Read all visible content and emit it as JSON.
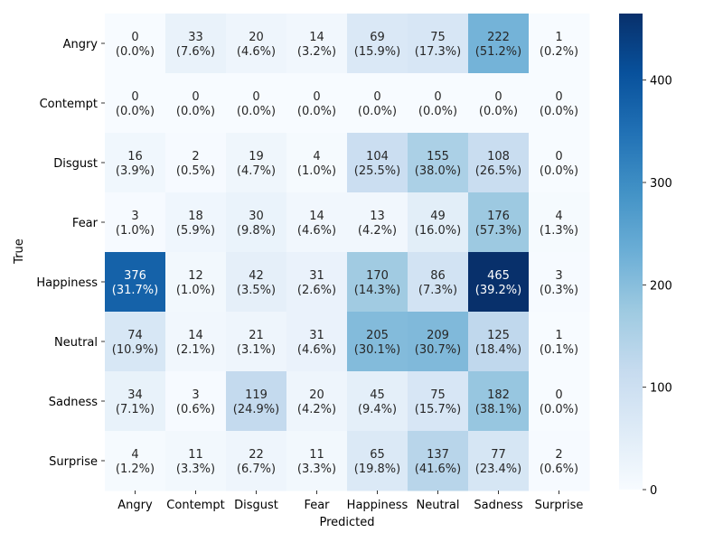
{
  "chart_data": {
    "type": "heatmap",
    "title": "",
    "xlabel": "Predicted",
    "ylabel": "True",
    "x_categories": [
      "Angry",
      "Contempt",
      "Disgust",
      "Fear",
      "Happiness",
      "Neutral",
      "Sadness",
      "Surprise"
    ],
    "y_categories": [
      "Angry",
      "Contempt",
      "Disgust",
      "Fear",
      "Happiness",
      "Neutral",
      "Sadness",
      "Surprise"
    ],
    "values": [
      [
        0,
        33,
        20,
        14,
        69,
        75,
        222,
        1
      ],
      [
        0,
        0,
        0,
        0,
        0,
        0,
        0,
        0
      ],
      [
        16,
        2,
        19,
        4,
        104,
        155,
        108,
        0
      ],
      [
        3,
        18,
        30,
        14,
        13,
        49,
        176,
        4
      ],
      [
        376,
        12,
        42,
        31,
        170,
        86,
        465,
        3
      ],
      [
        74,
        14,
        21,
        31,
        205,
        209,
        125,
        1
      ],
      [
        34,
        3,
        119,
        20,
        45,
        75,
        182,
        0
      ],
      [
        4,
        11,
        22,
        11,
        65,
        137,
        77,
        2
      ]
    ],
    "percentages": [
      [
        "(0.0%)",
        "(7.6%)",
        "(4.6%)",
        "(3.2%)",
        "(15.9%)",
        "(17.3%)",
        "(51.2%)",
        "(0.2%)"
      ],
      [
        "(0.0%)",
        "(0.0%)",
        "(0.0%)",
        "(0.0%)",
        "(0.0%)",
        "(0.0%)",
        "(0.0%)",
        "(0.0%)"
      ],
      [
        "(3.9%)",
        "(0.5%)",
        "(4.7%)",
        "(1.0%)",
        "(25.5%)",
        "(38.0%)",
        "(26.5%)",
        "(0.0%)"
      ],
      [
        "(1.0%)",
        "(5.9%)",
        "(9.8%)",
        "(4.6%)",
        "(4.2%)",
        "(16.0%)",
        "(57.3%)",
        "(1.3%)"
      ],
      [
        "(31.7%)",
        "(1.0%)",
        "(3.5%)",
        "(2.6%)",
        "(14.3%)",
        "(7.3%)",
        "(39.2%)",
        "(0.3%)"
      ],
      [
        "(10.9%)",
        "(2.1%)",
        "(3.1%)",
        "(4.6%)",
        "(30.1%)",
        "(30.7%)",
        "(18.4%)",
        "(0.1%)"
      ],
      [
        "(7.1%)",
        "(0.6%)",
        "(24.9%)",
        "(4.2%)",
        "(9.4%)",
        "(15.7%)",
        "(38.1%)",
        "(0.0%)"
      ],
      [
        "(1.2%)",
        "(3.3%)",
        "(6.7%)",
        "(3.3%)",
        "(19.8%)",
        "(41.6%)",
        "(23.4%)",
        "(0.6%)"
      ]
    ],
    "colormap": "Blues",
    "colorbar": {
      "range": [
        0,
        465
      ],
      "ticks": [
        0,
        100,
        200,
        300,
        400
      ]
    }
  }
}
